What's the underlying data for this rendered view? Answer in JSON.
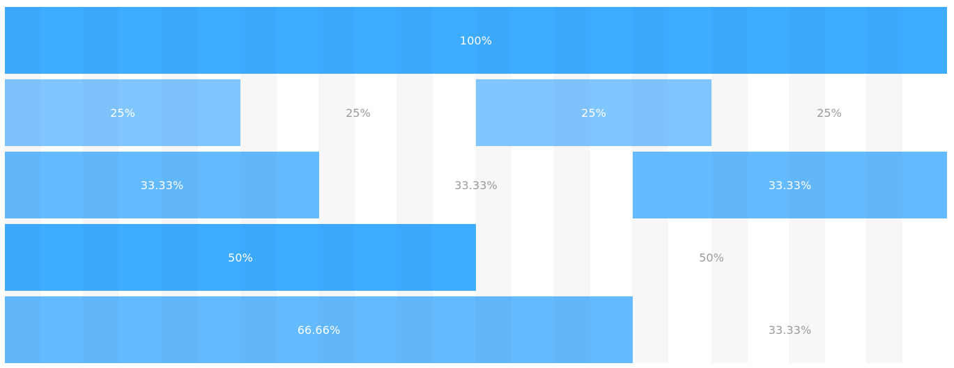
{
  "colors": {
    "strong": "#3fadff",
    "medium": "#64bbff",
    "light": "#80c6ff",
    "background_column": "#f7f7f7",
    "empty_label": "#9a9a9a",
    "filled_label": "#ffffff"
  },
  "rows": [
    {
      "cols": [
        {
          "label": "100%",
          "style": "strong"
        }
      ]
    },
    {
      "cols": [
        {
          "label": "25%",
          "style": "light"
        },
        {
          "label": "25%",
          "style": "empty"
        },
        {
          "label": "25%",
          "style": "light"
        },
        {
          "label": "25%",
          "style": "empty"
        }
      ]
    },
    {
      "cols": [
        {
          "label": "33.33%",
          "style": "medium"
        },
        {
          "label": "33.33%",
          "style": "empty"
        },
        {
          "label": "33.33%",
          "style": "medium"
        }
      ]
    },
    {
      "cols": [
        {
          "label": "50%",
          "style": "strong"
        },
        {
          "label": "50%",
          "style": "empty"
        }
      ]
    },
    {
      "cols": [
        {
          "label": "66.66%",
          "style": "medium"
        },
        {
          "label": "33.33%",
          "style": "empty"
        }
      ]
    }
  ]
}
